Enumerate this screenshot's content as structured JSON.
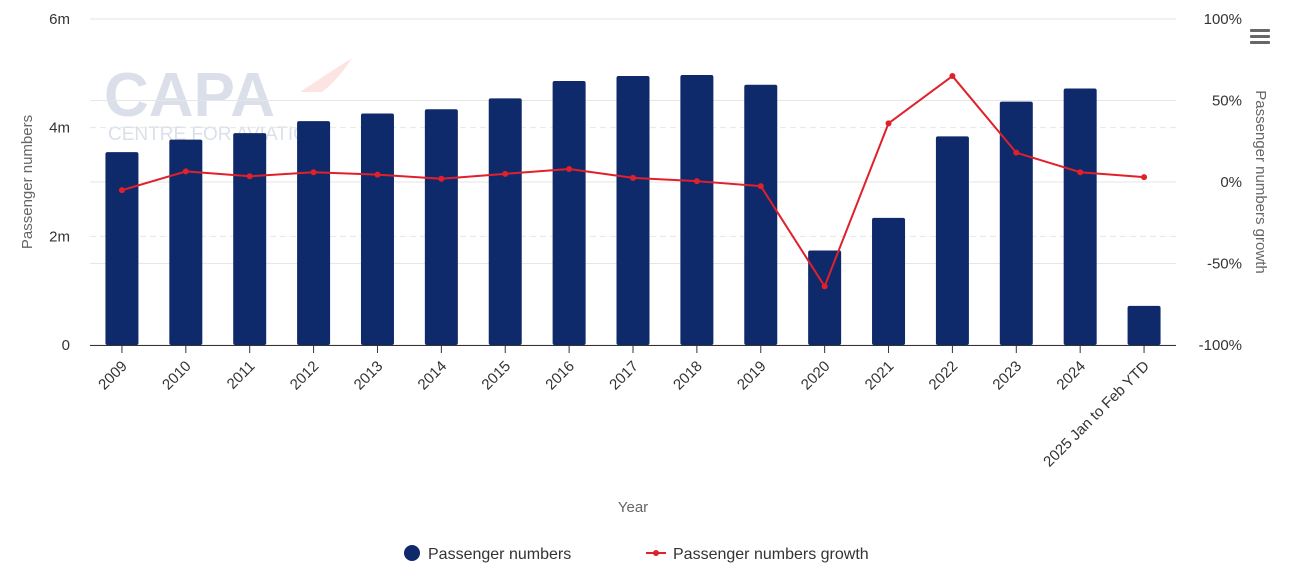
{
  "chart_data": {
    "type": "bar",
    "categories": [
      "2009",
      "2010",
      "2011",
      "2012",
      "2013",
      "2014",
      "2015",
      "2016",
      "2017",
      "2018",
      "2019",
      "2020",
      "2021",
      "2022",
      "2023",
      "2024",
      "2025 Jan to Feb YTD"
    ],
    "series": [
      {
        "name": "Passenger numbers",
        "type": "bar",
        "axis": "left",
        "color": "#0f2a6b",
        "values": [
          3.55,
          3.78,
          3.9,
          4.12,
          4.26,
          4.34,
          4.54,
          4.86,
          4.95,
          4.97,
          4.79,
          1.74,
          2.34,
          3.84,
          4.48,
          4.72,
          0.72
        ]
      },
      {
        "name": "Passenger numbers growth",
        "type": "line",
        "axis": "right",
        "color": "#e0202a",
        "values": [
          -5,
          6.5,
          3.5,
          6,
          4.5,
          2,
          5,
          8,
          2.5,
          0.5,
          -2.5,
          -64,
          36,
          65,
          18,
          6,
          3
        ]
      }
    ],
    "xlabel": "Year",
    "ylabel_left": "Passenger numbers",
    "ylabel_right": "Passenger numbers growth",
    "ylim_left": [
      0,
      6
    ],
    "ylim_right": [
      -100,
      100
    ],
    "yticks_left": [
      "0",
      "2m",
      "4m",
      "6m"
    ],
    "yticks_right": [
      "-100%",
      "-50%",
      "0%",
      "50%",
      "100%"
    ],
    "grid": true,
    "legend_position": "bottom",
    "watermark": {
      "text": "CAPA",
      "subtext": "CENTRE FOR AVIATION"
    },
    "menu_icon": "hamburger-menu-icon"
  }
}
